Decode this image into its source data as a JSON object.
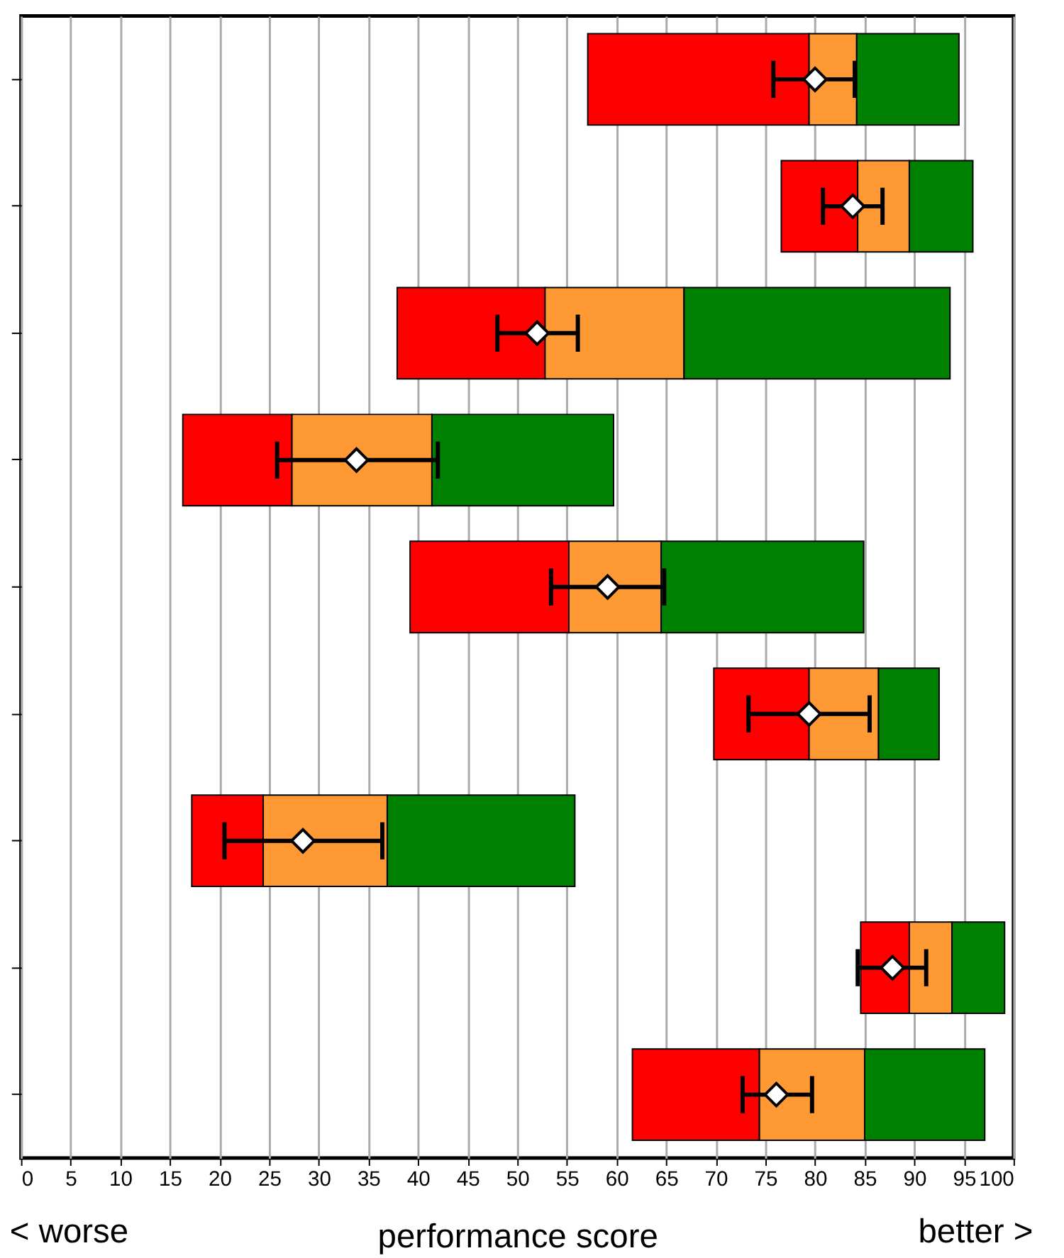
{
  "chart_data": {
    "type": "bar",
    "orientation": "horizontal",
    "categories": [
      null,
      null,
      null,
      null,
      null,
      null,
      null,
      null,
      null
    ],
    "series": [
      {
        "color": "#ff0000",
        "base": [
          57.1,
          76.6,
          37.9,
          16.3,
          39.2,
          69.8,
          17.2,
          84.6,
          61.6
        ],
        "values": [
          22.3,
          7.7,
          14.9,
          11.0,
          16.0,
          9.6,
          7.2,
          4.9,
          12.8
        ]
      },
      {
        "color": "#ff9933",
        "base": [
          79.4,
          84.3,
          52.8,
          27.3,
          55.2,
          79.4,
          24.4,
          89.5,
          74.4
        ],
        "values": [
          4.8,
          5.2,
          14.0,
          14.1,
          9.3,
          7.0,
          12.5,
          4.3,
          10.6
        ]
      },
      {
        "color": "#008000",
        "base": [
          84.2,
          89.5,
          66.8,
          41.4,
          64.5,
          86.4,
          36.9,
          93.8,
          85.0
        ],
        "values": [
          10.3,
          6.4,
          26.8,
          18.3,
          20.4,
          6.1,
          18.9,
          5.3,
          12.1
        ]
      },
      {
        "type": "scatter",
        "marker": "diamond",
        "color": "#ffffff",
        "values": [
          80.0,
          83.8,
          52.0,
          33.8,
          59.1,
          79.4,
          28.4,
          87.8,
          76.1
        ],
        "errors": [
          [
            75.8,
            84.0
          ],
          [
            80.8,
            86.8
          ],
          [
            48.0,
            56.1
          ],
          [
            25.8,
            42.0
          ],
          [
            53.4,
            64.8
          ],
          [
            73.3,
            85.5
          ],
          [
            20.5,
            36.4
          ],
          [
            84.3,
            91.2
          ],
          [
            72.7,
            79.7
          ]
        ]
      }
    ],
    "xlim": [
      0,
      100
    ],
    "xticks": [
      0,
      5,
      10,
      15,
      20,
      25,
      30,
      35,
      40,
      45,
      50,
      55,
      60,
      65,
      70,
      75,
      80,
      85,
      90,
      95,
      100
    ],
    "xlabel": "performance score",
    "grid": "x",
    "annotations": [
      "< worse",
      "better >"
    ]
  }
}
